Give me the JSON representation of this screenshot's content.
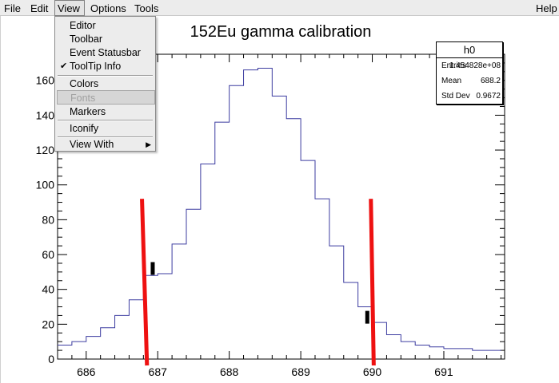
{
  "menubar": {
    "file": "File",
    "edit": "Edit",
    "view": "View",
    "options": "Options",
    "tools": "Tools",
    "help": "Help"
  },
  "view_menu": {
    "editor": "Editor",
    "toolbar": "Toolbar",
    "event_statusbar": "Event Statusbar",
    "tooltip_info": "ToolTip Info",
    "tooltip_checked": true,
    "colors": "Colors",
    "fonts": "Fonts",
    "markers": "Markers",
    "iconify": "Iconify",
    "view_with": "View With"
  },
  "stats": {
    "name": "h0",
    "entries_label": "Entries",
    "entries": "1.454828e+08",
    "mean_label": "Mean",
    "mean": "688.2",
    "stddev_label": "Std Dev",
    "stddev": "0.9672"
  },
  "colors": {
    "histogram_line": "#3c3ca0",
    "cut_lines": "#ee1111",
    "markers": "#000000"
  },
  "chart_data": {
    "type": "histogram",
    "title": "152Eu gamma calibration",
    "xlabel": "",
    "ylabel": "",
    "xlim": [
      685.6,
      691.85
    ],
    "ylim": [
      0,
      175
    ],
    "x_ticks": [
      686,
      687,
      688,
      689,
      690,
      691
    ],
    "y_ticks": [
      0,
      20,
      40,
      60,
      80,
      100,
      120,
      140,
      160
    ],
    "bin_width": 0.2,
    "bin_edges_start": 685.6,
    "counts": [
      8,
      10,
      13,
      18,
      25,
      34,
      48,
      49,
      66,
      86,
      112,
      136,
      157,
      166,
      167,
      151,
      138,
      114,
      92,
      65,
      44,
      30,
      21,
      14,
      10,
      8,
      7,
      6,
      6,
      5,
      5
    ],
    "cut_lines": [
      {
        "x_bottom": 686.85,
        "x_top": 686.78,
        "y_top": 92
      },
      {
        "x_bottom": 690.02,
        "x_top": 689.98,
        "y_top": 92
      }
    ],
    "markers": [
      {
        "x": 686.93,
        "y": 52
      },
      {
        "x": 689.93,
        "y": 24
      }
    ],
    "grid": false,
    "legend": "top-right"
  }
}
